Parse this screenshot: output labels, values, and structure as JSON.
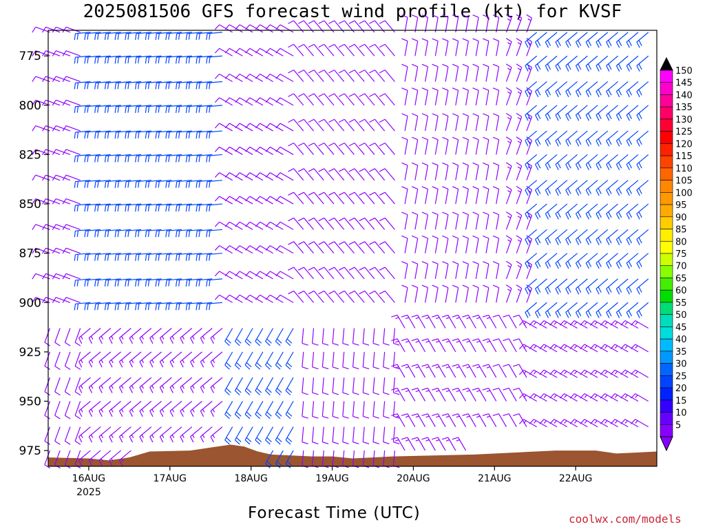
{
  "title": "2025081506 GFS forecast wind profile (kt) for KVSF",
  "credit": "coolwx.com/models",
  "chart_data": {
    "type": "wind-barb time-height profile",
    "title": "2025081506 GFS forecast wind profile (kt) for KVSF",
    "xlabel": "Forecast Time (UTC)",
    "ylabel": "",
    "x_ticks": [
      {
        "label": "16AUG",
        "sublabel": "2025"
      },
      {
        "label": "17AUG",
        "sublabel": ""
      },
      {
        "label": "18AUG",
        "sublabel": ""
      },
      {
        "label": "19AUG",
        "sublabel": ""
      },
      {
        "label": "20AUG",
        "sublabel": ""
      },
      {
        "label": "21AUG",
        "sublabel": ""
      },
      {
        "label": "22AUG",
        "sublabel": ""
      }
    ],
    "x_tick_hours": [
      18,
      42,
      66,
      90,
      114,
      138,
      162
    ],
    "x_range_hours": [
      6,
      186
    ],
    "y_ticks": [
      775,
      800,
      825,
      850,
      875,
      900,
      925,
      950,
      975
    ],
    "y_range_hpa": [
      762,
      983
    ],
    "levels_hpa": [
      763,
      775,
      788,
      800,
      813,
      825,
      838,
      850,
      863,
      875,
      888,
      900,
      913,
      925,
      938,
      950,
      963,
      975
    ],
    "surface_pressure_hpa": [
      [
        6,
        978.5
      ],
      [
        18,
        979
      ],
      [
        24,
        980
      ],
      [
        30,
        978.5
      ],
      [
        36,
        975.5
      ],
      [
        48,
        975
      ],
      [
        54,
        973.5
      ],
      [
        60,
        972
      ],
      [
        64,
        973
      ],
      [
        68,
        975.5
      ],
      [
        72,
        977
      ],
      [
        78,
        977.5
      ],
      [
        84,
        978
      ],
      [
        90,
        978
      ],
      [
        96,
        979
      ],
      [
        102,
        978.5
      ],
      [
        108,
        978
      ],
      [
        120,
        977.5
      ],
      [
        132,
        977
      ],
      [
        144,
        976
      ],
      [
        156,
        975
      ],
      [
        168,
        975
      ],
      [
        174,
        976.5
      ],
      [
        180,
        976
      ],
      [
        186,
        975.5
      ]
    ],
    "colorbar": {
      "unit": "kt",
      "labels": [
        "150",
        "145",
        "140",
        "135",
        "130",
        "125",
        "120",
        "115",
        "110",
        "105",
        "100",
        "95",
        "90",
        "85",
        "80",
        "75",
        "70",
        "65",
        "60",
        "55",
        "50",
        "45",
        "40",
        "35",
        "30",
        "25",
        "20",
        "15",
        "10",
        "5"
      ],
      "colors": [
        "#ff00ff",
        "#ff00cc",
        "#ff0099",
        "#ff0066",
        "#ff0033",
        "#ff0000",
        "#ff2200",
        "#ff4400",
        "#ff6600",
        "#ff8800",
        "#ff9900",
        "#ffaa00",
        "#ffcc00",
        "#ffee00",
        "#ffff00",
        "#ccff00",
        "#88ff00",
        "#44ee00",
        "#00dd00",
        "#00dd77",
        "#00ddbb",
        "#00dddd",
        "#00bbff",
        "#0099ff",
        "#0066ff",
        "#0044ff",
        "#0022ff",
        "#3300ff",
        "#6600ff",
        "#8800ff"
      ],
      "top_color": "#000000",
      "bottom_color": "#8800ff"
    },
    "colors": {
      "terrain": "#9b5530",
      "barb_light": "#8f00ff",
      "barb_strong": "#0044ff"
    }
  }
}
